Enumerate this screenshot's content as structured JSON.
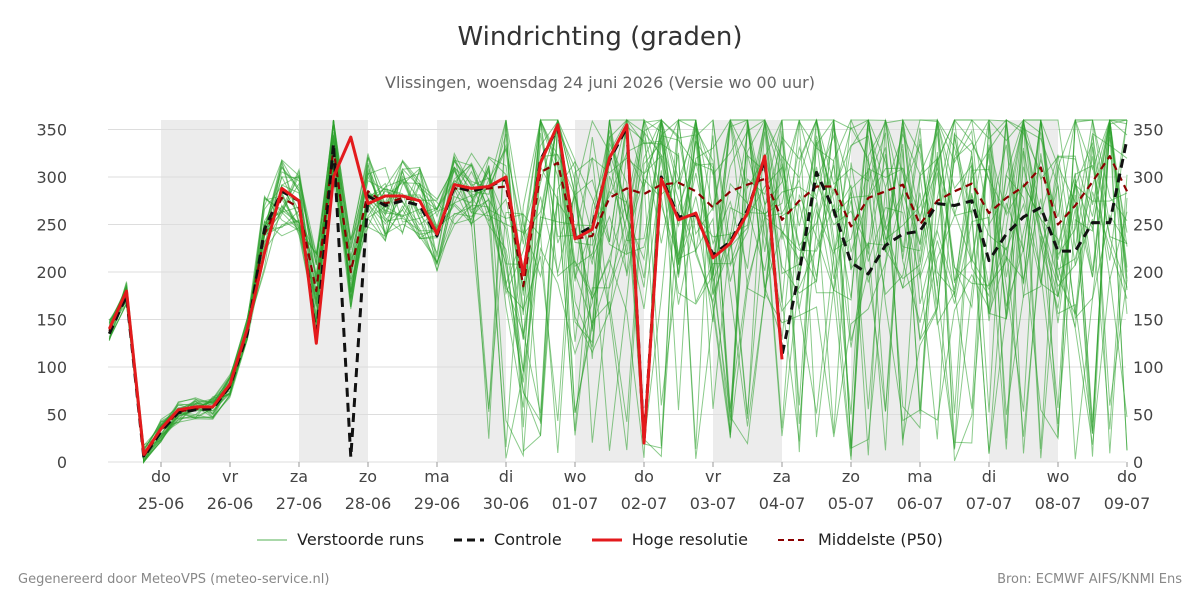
{
  "title": "Windrichting (graden)",
  "subtitle": "Vlissingen, woensdag 24 juni 2026 (Versie wo 00 uur)",
  "footer": {
    "left": "Gegenereerd door MeteoVPS (meteo-service.nl)",
    "right": "Bron: ECMWF AIFS/KNMI Ens"
  },
  "colors": {
    "ensemble": "#2ca02c",
    "control": "#111111",
    "hires": "#e31a1c",
    "median": "#8b0000",
    "weekend_shade": "#ececec",
    "grid": "#dddddd"
  },
  "legend": [
    {
      "key": "ensemble",
      "label": "Verstoorde runs",
      "style": "thin-solid"
    },
    {
      "key": "control",
      "label": "Controle",
      "style": "dashed"
    },
    {
      "key": "hires",
      "label": "Hoge resolutie",
      "style": "thick-solid"
    },
    {
      "key": "median",
      "label": "Middelste (P50)",
      "style": "dashed"
    }
  ],
  "chart_data": {
    "type": "line",
    "title": "Windrichting (graden)",
    "ylim": [
      0,
      360
    ],
    "yticks": [
      0,
      50,
      100,
      150,
      200,
      250,
      300,
      350
    ],
    "x_unit": "day index (0 = do 25-06 00:00)",
    "xlim": [
      -0.75,
      14
    ],
    "x_ticks": [
      {
        "day": "do",
        "date": "25-06"
      },
      {
        "day": "vr",
        "date": "26-06"
      },
      {
        "day": "za",
        "date": "27-06"
      },
      {
        "day": "zo",
        "date": "28-06"
      },
      {
        "day": "ma",
        "date": "29-06"
      },
      {
        "day": "di",
        "date": "30-06"
      },
      {
        "day": "wo",
        "date": "01-07"
      },
      {
        "day": "do",
        "date": "02-07"
      },
      {
        "day": "vr",
        "date": "03-07"
      },
      {
        "day": "za",
        "date": "04-07"
      },
      {
        "day": "zo",
        "date": "05-07"
      },
      {
        "day": "ma",
        "date": "06-07"
      },
      {
        "day": "di",
        "date": "07-07"
      },
      {
        "day": "wo",
        "date": "08-07"
      },
      {
        "day": "do",
        "date": "09-07"
      }
    ],
    "shaded_days": [
      [
        0,
        1
      ],
      [
        2,
        3
      ],
      [
        4,
        5
      ],
      [
        6,
        7
      ],
      [
        8,
        9
      ],
      [
        10,
        11
      ],
      [
        12,
        13
      ]
    ],
    "grid": true,
    "legend_position": "bottom",
    "series": [
      {
        "name": "Hoge resolutie",
        "x": [
          -0.75,
          -0.5,
          -0.25,
          0,
          0.25,
          0.5,
          0.75,
          1,
          1.25,
          1.5,
          1.75,
          2,
          2.25,
          2.5,
          2.75,
          3,
          3.25,
          3.5,
          3.75,
          4,
          4.25,
          4.5,
          4.75,
          5,
          5.25,
          5.5,
          5.75,
          6,
          6.25,
          6.5,
          6.75,
          7,
          7.25,
          7.5,
          7.75,
          8,
          8.25,
          8.5,
          8.75,
          9
        ],
        "values": [
          140,
          180,
          8,
          35,
          55,
          58,
          58,
          82,
          140,
          220,
          288,
          275,
          125,
          300,
          342,
          272,
          280,
          280,
          275,
          240,
          292,
          288,
          290,
          300,
          197,
          315,
          355,
          235,
          245,
          320,
          355,
          20,
          298,
          255,
          262,
          215,
          230,
          262,
          322,
          108
        ]
      },
      {
        "name": "Controle",
        "x": [
          -0.75,
          -0.5,
          -0.25,
          0,
          0.25,
          0.5,
          0.75,
          1,
          1.25,
          1.5,
          1.75,
          2,
          2.25,
          2.5,
          2.75,
          3,
          3.25,
          3.5,
          3.75,
          4,
          4.25,
          4.5,
          4.75,
          5,
          5.25,
          5.5,
          5.75,
          6,
          6.25,
          6.5,
          6.75,
          7,
          7.25,
          7.5,
          7.75,
          8,
          8.25,
          8.5,
          8.75,
          9,
          9.25,
          9.5,
          9.75,
          10,
          10.25,
          10.5,
          10.75,
          11,
          11.25,
          11.5,
          11.75,
          12,
          12.25,
          12.5,
          12.75,
          13,
          13.25,
          13.5,
          13.75,
          14
        ],
        "values": [
          135,
          175,
          5,
          32,
          52,
          55,
          56,
          80,
          135,
          245,
          285,
          275,
          130,
          335,
          5,
          280,
          270,
          275,
          270,
          238,
          290,
          285,
          290,
          298,
          195,
          318,
          352,
          238,
          248,
          318,
          352,
          22,
          300,
          258,
          260,
          218,
          232,
          265,
          318,
          112,
          200,
          305,
          265,
          210,
          198,
          228,
          240,
          243,
          272,
          270,
          275,
          212,
          240,
          258,
          268,
          222,
          222,
          252,
          252,
          340
        ]
      },
      {
        "name": "Middelste (P50)",
        "x": [
          -0.75,
          -0.5,
          -0.25,
          0,
          0.25,
          0.5,
          0.75,
          1,
          1.25,
          1.5,
          1.75,
          2,
          2.25,
          2.5,
          2.75,
          3,
          3.25,
          3.5,
          3.75,
          4,
          4.25,
          4.5,
          4.75,
          5,
          5.25,
          5.5,
          5.75,
          6,
          6.25,
          6.5,
          6.75,
          7,
          7.25,
          7.5,
          7.75,
          8,
          8.25,
          8.5,
          8.75,
          9,
          9.25,
          9.5,
          9.75,
          10,
          10.25,
          10.5,
          10.75,
          11,
          11.25,
          11.5,
          11.75,
          12,
          12.25,
          12.5,
          12.75,
          13,
          13.25,
          13.5,
          13.75,
          14
        ],
        "values": [
          138,
          178,
          6,
          33,
          53,
          56,
          57,
          80,
          140,
          240,
          278,
          268,
          180,
          330,
          200,
          285,
          272,
          278,
          275,
          240,
          288,
          286,
          288,
          290,
          185,
          305,
          315,
          235,
          238,
          278,
          288,
          282,
          292,
          294,
          285,
          268,
          285,
          292,
          298,
          255,
          275,
          290,
          290,
          248,
          278,
          285,
          292,
          250,
          275,
          285,
          293,
          262,
          278,
          290,
          310,
          250,
          270,
          295,
          322,
          285
        ]
      }
    ]
  }
}
